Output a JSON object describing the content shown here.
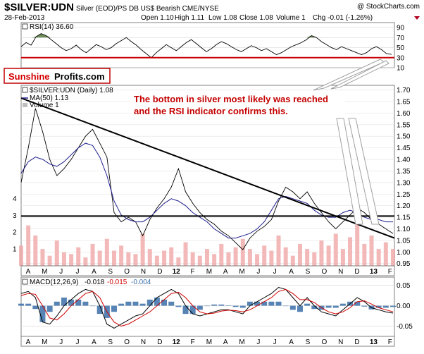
{
  "header": {
    "symbol": "$SILVER:UDN",
    "description": "Silver (EOD)/PS DB US$ Bearish CME/NYSE",
    "credit": "@ StockCharts.com",
    "date": "28-Feb-2013",
    "quote_open": "Open 1.10",
    "quote_high": "High 1.11",
    "quote_low": "Low 1.08",
    "quote_close": "Close 1.08",
    "quote_volume": "Volume 1",
    "quote_chg": "Chg -0.01 (-1.26%)"
  },
  "branding": {
    "part1": "Sunshine",
    "part2": "Profits.com"
  },
  "annotation": {
    "line1": "The bottom in silver most likely was reached",
    "line2": "and the RSI indicator confirms this."
  },
  "colors": {
    "rsi_line": "#000000",
    "rsi_fill": "#6e8c5a",
    "support": "#c80000",
    "ma": "#1f1f8f",
    "price_up": "#000000",
    "price_down": "#b00020",
    "volume": "#f0a8a8",
    "macd_hist": "#3a6fa8",
    "signal": "#d00000",
    "annotation": "#c40000",
    "trendline": "#000000"
  },
  "chart_data": [
    {
      "type": "line",
      "name": "RSI(14)",
      "legend": "RSI(14) 36.60",
      "last_value": 36.6,
      "ylim": [
        10,
        100
      ],
      "yticks": [
        "90",
        "70",
        "50",
        "30",
        "10"
      ],
      "ytick_values": [
        90,
        70,
        50,
        30,
        10
      ],
      "overbought": 70,
      "oversold": 30,
      "x": [
        0,
        7,
        14,
        21,
        28,
        35,
        42,
        49,
        56,
        63,
        70,
        77,
        84,
        91,
        98,
        105,
        112,
        119,
        126,
        133,
        140,
        147,
        154,
        161,
        168,
        175,
        182,
        189,
        196,
        203,
        210,
        217,
        224,
        231,
        238,
        245,
        252,
        259,
        266,
        273,
        280,
        287,
        294,
        301,
        308,
        315,
        322,
        329,
        336,
        343,
        350,
        357,
        364,
        371,
        378,
        385,
        392,
        399,
        406,
        413,
        420,
        427,
        434,
        441,
        448,
        455,
        462,
        469,
        476,
        483,
        490,
        497,
        504,
        511,
        518
      ],
      "values": [
        52,
        60,
        55,
        72,
        78,
        74,
        66,
        58,
        50,
        44,
        48,
        55,
        46,
        40,
        48,
        56,
        52,
        46,
        50,
        58,
        64,
        70,
        62,
        55,
        46,
        38,
        30,
        40,
        48,
        56,
        50,
        44,
        52,
        60,
        66,
        58,
        50,
        42,
        48,
        56,
        62,
        58,
        52,
        46,
        42,
        48,
        54,
        50,
        44,
        48,
        42,
        36,
        40,
        46,
        52,
        56,
        60,
        66,
        74,
        70,
        62,
        56,
        50,
        46,
        52,
        48,
        44,
        40,
        36,
        40,
        48,
        52,
        46,
        38,
        36.6
      ]
    },
    {
      "type": "line",
      "name": "$SILVER:UDN (Daily)",
      "legend_price": "$SILVER:UDN (Daily) 1.08",
      "legend_ma": "MA(50) 1.13",
      "legend_volume": "Volume 1",
      "ylim": [
        0.94,
        1.72
      ],
      "yticks": [
        "1.70",
        "1.65",
        "1.60",
        "1.55",
        "1.50",
        "1.45",
        "1.40",
        "1.35",
        "1.30",
        "1.25",
        "1.20",
        "1.15",
        "1.10",
        "1.05",
        "1.00",
        "0.95"
      ],
      "ytick_values": [
        1.7,
        1.65,
        1.6,
        1.55,
        1.5,
        1.45,
        1.4,
        1.35,
        1.3,
        1.25,
        1.2,
        1.15,
        1.1,
        1.05,
        1.0,
        0.95
      ],
      "volume_ylim": [
        0,
        4.6
      ],
      "volume_yticks": [
        "4",
        "3",
        "2",
        "1"
      ],
      "volume_ytick_values": [
        4,
        3,
        2,
        1
      ],
      "x": [
        0,
        10,
        20,
        30,
        40,
        50,
        60,
        70,
        80,
        90,
        100,
        110,
        120,
        130,
        140,
        150,
        160,
        170,
        180,
        190,
        200,
        210,
        220,
        230,
        240,
        250,
        260,
        270,
        280,
        290,
        300,
        310,
        320,
        330,
        340,
        350,
        360,
        370,
        380,
        390,
        400,
        410,
        420,
        430,
        440,
        450,
        460,
        470,
        480,
        490,
        500,
        510,
        520
      ],
      "price": [
        1.3,
        1.45,
        1.62,
        1.52,
        1.4,
        1.33,
        1.36,
        1.4,
        1.45,
        1.5,
        1.53,
        1.47,
        1.41,
        1.17,
        1.13,
        1.15,
        1.13,
        1.07,
        1.14,
        1.19,
        1.23,
        1.28,
        1.36,
        1.26,
        1.21,
        1.17,
        1.14,
        1.12,
        1.09,
        1.07,
        1.04,
        1.01,
        1.06,
        1.09,
        1.11,
        1.14,
        1.22,
        1.28,
        1.26,
        1.23,
        1.26,
        1.21,
        1.17,
        1.13,
        1.1,
        1.13,
        1.16,
        1.19,
        1.17,
        1.14,
        1.12,
        1.1,
        1.08
      ],
      "ma50": [
        1.34,
        1.39,
        1.41,
        1.4,
        1.38,
        1.37,
        1.39,
        1.42,
        1.45,
        1.47,
        1.46,
        1.41,
        1.33,
        1.22,
        1.16,
        1.14,
        1.13,
        1.13,
        1.15,
        1.18,
        1.21,
        1.23,
        1.22,
        1.2,
        1.17,
        1.15,
        1.13,
        1.1,
        1.08,
        1.06,
        1.06,
        1.07,
        1.08,
        1.1,
        1.13,
        1.18,
        1.23,
        1.24,
        1.23,
        1.22,
        1.21,
        1.18,
        1.16,
        1.15,
        1.15,
        1.17,
        1.18,
        1.17,
        1.15,
        1.14,
        1.14,
        1.13,
        1.13
      ],
      "volume": [
        1.2,
        2.4,
        1.8,
        1.0,
        0.6,
        1.5,
        0.8,
        0.7,
        1.1,
        0.5,
        1.3,
        0.9,
        1.6,
        0.9,
        1.2,
        0.8,
        0.7,
        1.9,
        1.0,
        0.6,
        0.9,
        1.1,
        0.5,
        1.4,
        0.8,
        0.6,
        1.0,
        0.7,
        1.3,
        0.8,
        1.1,
        1.6,
        1.0,
        0.7,
        1.2,
        0.9,
        1.8,
        1.1,
        0.6,
        1.3,
        1.0,
        0.8,
        1.5,
        1.2,
        1.9,
        1.0,
        1.7,
        2.6,
        1.3,
        1.8,
        1.0,
        1.4,
        1.0
      ],
      "support_level": 1.155,
      "trendline": {
        "from": [
          0,
          1.665
        ],
        "to": [
          522,
          1.06
        ]
      }
    },
    {
      "type": "line",
      "name": "MACD(12,26,9)",
      "legend_name": "MACD(12,26,9)",
      "macd_value": "-0.018",
      "signal_value": "-0.015",
      "hist_value": "-0.004",
      "ylim": [
        -0.075,
        0.07
      ],
      "yticks": [
        "0.05",
        "0.00",
        "-0.05"
      ],
      "ytick_values": [
        0.05,
        0.0,
        -0.05
      ],
      "x": [
        0,
        10,
        20,
        30,
        40,
        50,
        60,
        70,
        80,
        90,
        100,
        110,
        120,
        130,
        140,
        150,
        160,
        170,
        180,
        190,
        200,
        210,
        220,
        230,
        240,
        250,
        260,
        270,
        280,
        290,
        300,
        310,
        320,
        330,
        340,
        350,
        360,
        370,
        380,
        390,
        400,
        410,
        420,
        430,
        440,
        450,
        460,
        470,
        480,
        490,
        500,
        510,
        520
      ],
      "macd": [
        0.03,
        0.035,
        0.02,
        -0.04,
        -0.045,
        -0.025,
        0.0,
        0.015,
        0.03,
        0.04,
        0.035,
        0.0,
        -0.045,
        -0.055,
        -0.045,
        -0.035,
        -0.025,
        -0.02,
        0.0,
        0.02,
        0.03,
        0.04,
        0.03,
        0.0,
        -0.02,
        -0.025,
        -0.02,
        -0.015,
        -0.01,
        -0.01,
        -0.015,
        -0.02,
        0.0,
        0.01,
        0.02,
        0.03,
        0.045,
        0.04,
        0.02,
        0.0,
        0.02,
        0.0,
        -0.015,
        -0.02,
        -0.025,
        -0.01,
        0.005,
        0.02,
        0.01,
        -0.005,
        -0.01,
        -0.015,
        -0.018
      ],
      "signal": [
        0.025,
        0.03,
        0.028,
        0.0,
        -0.03,
        -0.035,
        -0.02,
        0.0,
        0.015,
        0.03,
        0.035,
        0.02,
        -0.015,
        -0.04,
        -0.05,
        -0.045,
        -0.035,
        -0.025,
        -0.015,
        0.0,
        0.015,
        0.03,
        0.033,
        0.02,
        0.0,
        -0.015,
        -0.02,
        -0.018,
        -0.013,
        -0.011,
        -0.012,
        -0.015,
        -0.01,
        0.0,
        0.01,
        0.02,
        0.035,
        0.04,
        0.03,
        0.015,
        0.015,
        0.008,
        -0.005,
        -0.015,
        -0.02,
        -0.015,
        -0.005,
        0.01,
        0.012,
        0.004,
        -0.005,
        -0.01,
        -0.015
      ],
      "ma_note": "histogram = macd - signal"
    }
  ],
  "time_axis": {
    "labels": [
      "A",
      "M",
      "J",
      "J",
      "A",
      "S",
      "O",
      "N",
      "D",
      "12",
      "F",
      "M",
      "A",
      "M",
      "J",
      "J",
      "A",
      "S",
      "O",
      "N",
      "D",
      "13",
      "F"
    ],
    "positions": [
      0,
      23,
      46,
      69,
      92,
      115,
      138,
      161,
      184,
      207,
      230,
      253,
      276,
      299,
      322,
      345,
      368,
      391,
      414,
      437,
      460,
      483,
      506
    ]
  }
}
